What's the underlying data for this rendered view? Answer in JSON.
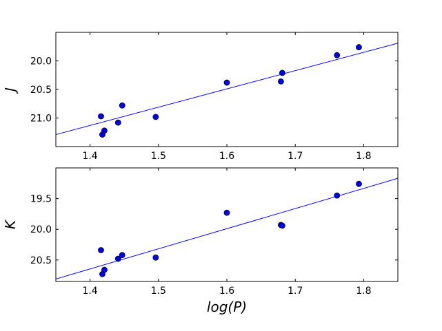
{
  "chart_data": [
    {
      "type": "scatter",
      "xlabel": "",
      "ylabel": "J",
      "xlim": [
        1.35,
        1.85
      ],
      "ylim": [
        21.5,
        19.5
      ],
      "y_inverted": true,
      "xticks": [
        "1.4",
        "1.5",
        "1.6",
        "1.7",
        "1.8"
      ],
      "yticks": [
        "20.0",
        "20.5",
        "21.0"
      ],
      "grid": false,
      "legend": "none",
      "colors": {
        "points": "#0000ff",
        "point_edge": "#000000",
        "fit_line": "#0000ff"
      },
      "series": [
        {
          "x": [
            1.416,
            1.418,
            1.421,
            1.441,
            1.447,
            1.496,
            1.6,
            1.679,
            1.681,
            1.761,
            1.793
          ],
          "y": [
            20.97,
            21.29,
            21.22,
            21.08,
            20.78,
            20.98,
            20.38,
            20.36,
            20.21,
            19.9,
            19.76
          ]
        }
      ],
      "fit_line": {
        "x": [
          1.35,
          1.85
        ],
        "y": [
          21.29,
          19.69
        ]
      }
    },
    {
      "type": "scatter",
      "xlabel": "log(P)",
      "ylabel": "K",
      "xlim": [
        1.35,
        1.85
      ],
      "ylim": [
        20.85,
        19.0
      ],
      "y_inverted": true,
      "xticks": [
        "1.4",
        "1.5",
        "1.6",
        "1.7",
        "1.8"
      ],
      "yticks": [
        "19.5",
        "20.0",
        "20.5"
      ],
      "grid": false,
      "legend": "none",
      "colors": {
        "points": "#0000ff",
        "point_edge": "#000000",
        "fit_line": "#0000ff"
      },
      "series": [
        {
          "x": [
            1.416,
            1.418,
            1.421,
            1.441,
            1.447,
            1.496,
            1.6,
            1.679,
            1.681,
            1.761,
            1.793
          ],
          "y": [
            20.34,
            20.73,
            20.66,
            20.48,
            20.42,
            20.46,
            19.73,
            19.93,
            19.94,
            19.45,
            19.26
          ]
        }
      ],
      "fit_line": {
        "x": [
          1.35,
          1.85
        ],
        "y": [
          20.81,
          19.17
        ]
      }
    }
  ]
}
